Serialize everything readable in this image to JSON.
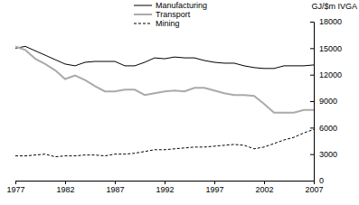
{
  "chart_data": {
    "type": "line",
    "ylabel": "GJ/$m IVGA",
    "x": [
      1977,
      1978,
      1979,
      1980,
      1981,
      1982,
      1983,
      1984,
      1985,
      1986,
      1987,
      1988,
      1989,
      1990,
      1991,
      1992,
      1993,
      1994,
      1995,
      1996,
      1997,
      1998,
      1999,
      2000,
      2001,
      2002,
      2003,
      2004,
      2005,
      2006,
      2007
    ],
    "series": [
      {
        "name": "Manufacturing",
        "color": "#000000",
        "line_style": "solid",
        "values": [
          15000,
          15200,
          14700,
          14200,
          13700,
          13200,
          13000,
          13400,
          13500,
          13500,
          13500,
          13000,
          13000,
          13400,
          13900,
          13800,
          14000,
          13900,
          13900,
          13600,
          13400,
          13300,
          13300,
          13000,
          12800,
          12700,
          12700,
          13000,
          13000,
          13000,
          13100
        ]
      },
      {
        "name": "Transport",
        "color": "#aaaaaa",
        "line_style": "solid",
        "values": [
          15200,
          14800,
          13800,
          13200,
          12500,
          11500,
          11900,
          11400,
          10700,
          10100,
          10100,
          10300,
          10300,
          9700,
          9900,
          10100,
          10200,
          10100,
          10500,
          10500,
          10200,
          9900,
          9700,
          9700,
          9600,
          8700,
          7700,
          7700,
          7700,
          8000,
          8000
        ]
      },
      {
        "name": "Mining",
        "color": "#000000",
        "line_style": "dashed",
        "values": [
          2800,
          2800,
          2900,
          3000,
          2700,
          2800,
          2800,
          2900,
          2900,
          2800,
          3000,
          3000,
          3100,
          3300,
          3500,
          3500,
          3600,
          3700,
          3800,
          3800,
          3900,
          4000,
          4100,
          4000,
          3600,
          3800,
          4200,
          4600,
          4900,
          5400,
          5800
        ]
      }
    ],
    "xlim": [
      1977,
      2007
    ],
    "xticks": [
      1977,
      1982,
      1987,
      1992,
      1997,
      2002,
      2007
    ],
    "ylim": [
      0,
      18000
    ],
    "yticks": [
      0,
      3000,
      6000,
      9000,
      12000,
      15000,
      18000
    ],
    "legend": "top",
    "grid": false
  }
}
